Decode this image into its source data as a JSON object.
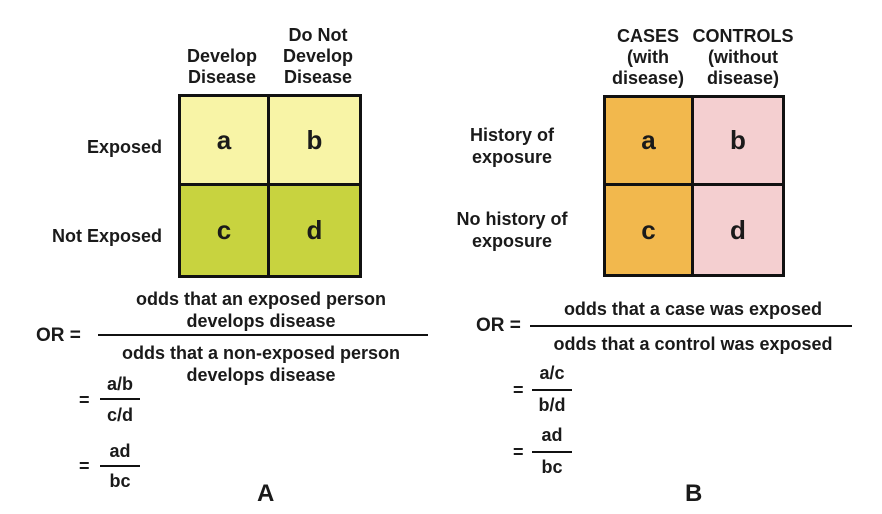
{
  "panel_a": {
    "label": "A",
    "col_headers": [
      "Develop\nDisease",
      "Do Not\nDevelop\nDisease"
    ],
    "row_labels": [
      "Exposed",
      "Not Exposed"
    ],
    "cells": [
      "a",
      "b",
      "c",
      "d"
    ],
    "colors": {
      "top": "#f8f4a6",
      "bottom": "#c8d33f"
    },
    "formula": {
      "lhs": "OR",
      "eq": "=",
      "numerator": "odds that an exposed person\ndevelops disease",
      "denominator": "odds that a non-exposed person\ndevelops disease",
      "step1": {
        "eq": "=",
        "num": "a/b",
        "den": "c/d"
      },
      "step2": {
        "eq": "=",
        "num": "ad",
        "den": "bc"
      }
    }
  },
  "panel_b": {
    "label": "B",
    "col_headers": [
      "CASES\n(with\ndisease)",
      "CONTROLS\n(without\ndisease)"
    ],
    "row_labels": [
      "History of\nexposure",
      "No history of\nexposure"
    ],
    "cells": [
      "a",
      "b",
      "c",
      "d"
    ],
    "colors": {
      "left": "#f2b84d",
      "right": "#f4cfd0"
    },
    "formula": {
      "lhs": "OR",
      "eq": "=",
      "numerator": "odds that a case was exposed",
      "denominator": "odds that a control was exposed",
      "step1": {
        "eq": "=",
        "num": "a/c",
        "den": "b/d"
      },
      "step2": {
        "eq": "=",
        "num": "ad",
        "den": "bc"
      }
    }
  }
}
